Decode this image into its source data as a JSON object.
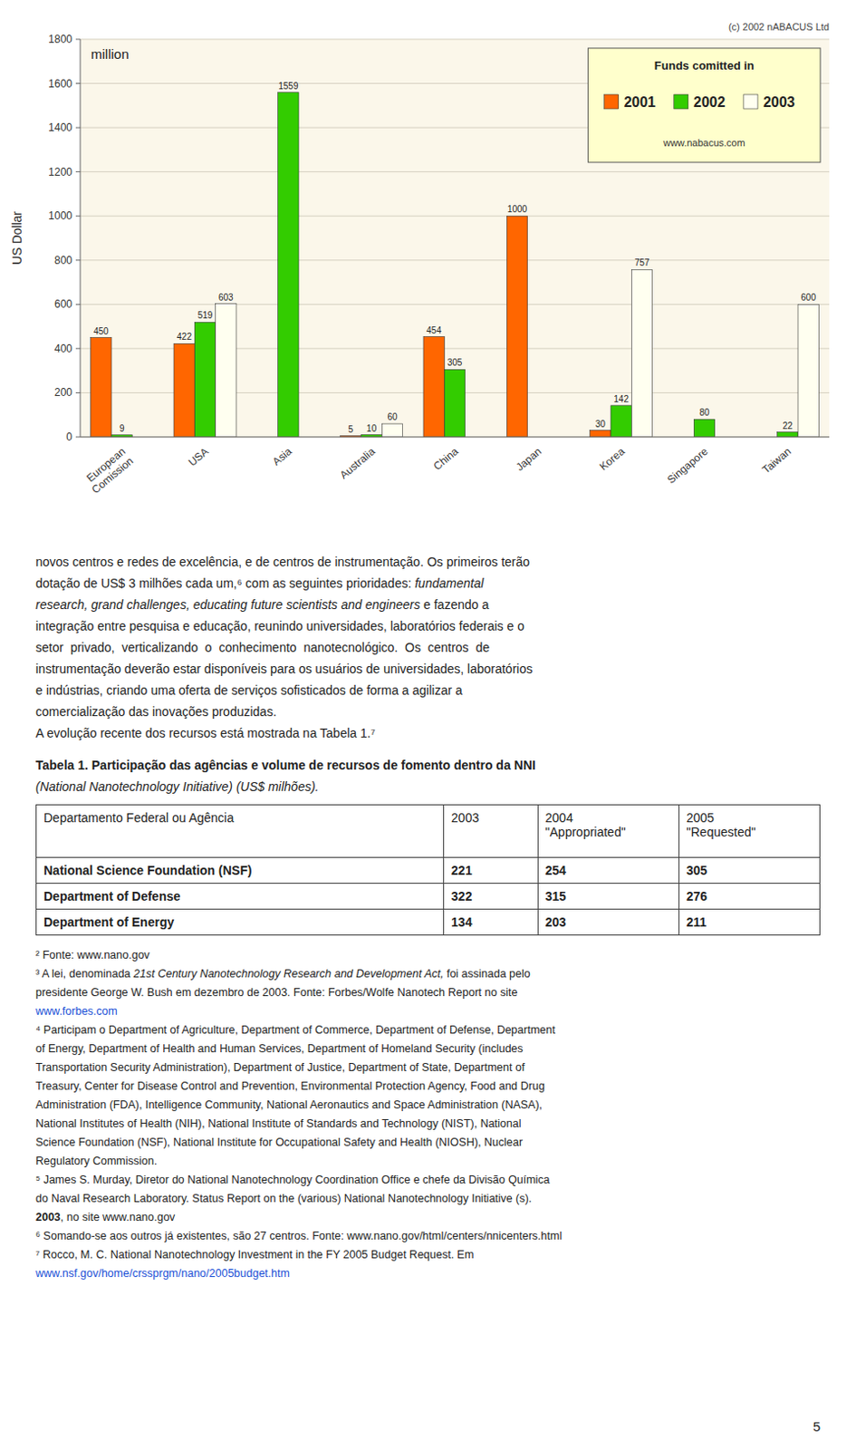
{
  "chart_data": {
    "type": "bar",
    "categories": [
      "European\nComission",
      "USA",
      "Asia",
      "Australia",
      "China",
      "Japan",
      "Korea",
      "Singapore",
      "Taiwan"
    ],
    "series": [
      {
        "name": "2001",
        "color": "#FF6600",
        "values": [
          450,
          422,
          0,
          5,
          454,
          1000,
          30,
          0,
          0
        ],
        "value_labels": [
          "450",
          "422",
          null,
          "5",
          "454",
          "1000",
          "30",
          null,
          null
        ]
      },
      {
        "name": "2002",
        "color": "#33CC00",
        "values": [
          9,
          519,
          1559,
          10,
          305,
          0,
          142,
          80,
          22
        ],
        "value_labels": [
          "9",
          "519",
          "1559",
          "10",
          "305",
          null,
          "142",
          "80",
          "22"
        ]
      },
      {
        "name": "2003",
        "color": "#FFFFF0",
        "values": [
          0,
          603,
          0,
          60,
          0,
          0,
          757,
          0,
          600
        ],
        "value_labels": [
          null,
          "603",
          null,
          "60",
          null,
          null,
          "757",
          null,
          "600"
        ]
      }
    ],
    "ylabel": "US Dollar",
    "ylim": [
      0,
      1800
    ],
    "yticks": [
      0,
      200,
      400,
      600,
      800,
      1000,
      1200,
      1400,
      1600,
      1800
    ],
    "grid": true,
    "legend": "upper right",
    "data_labels": true,
    "annotations": [
      "million",
      "(c) 2002 nABACUS Ltd",
      "Funds comitted in",
      "www.nabacus.com"
    ]
  },
  "body_lines": [
    [
      {
        "text": "novos centros e redes de excelência, e de centros de instrumentação. Os primeiros terão",
        "style": "normal"
      }
    ],
    [
      {
        "text": "dotação de US$ 3 milhões cada um,⁶ com as seguintes prioridades: ",
        "style": "normal"
      },
      {
        "text": "fundamental",
        "style": "italic"
      }
    ],
    [
      {
        "text": "research, grand challenges, educating future scientists and engineers",
        "style": "italic"
      },
      {
        "text": " e fazendo a",
        "style": "normal"
      }
    ],
    [
      {
        "text": "integração entre pesquisa e educação, reunindo universidades, laboratórios federais e o",
        "style": "normal"
      }
    ],
    [
      {
        "text": "setor  privado,  verticalizando  o  conhecimento  nanotecnológico.  Os  centros  de",
        "style": "normal"
      }
    ],
    [
      {
        "text": "instrumentação deverão estar disponíveis para os usuários de universidades, laboratórios",
        "style": "normal"
      }
    ],
    [
      {
        "text": "e indústrias, criando uma oferta de serviços sofisticados de forma a agilizar a",
        "style": "normal"
      }
    ],
    [
      {
        "text": "comercialização das inovações produzidas.",
        "style": "normal"
      }
    ],
    [
      {
        "text": "A evolução recente dos recursos está mostrada na Tabela 1.⁷",
        "style": "normal"
      }
    ]
  ],
  "table_title": [
    [
      {
        "text": "Tabela 1. Participação das agências e volume de recursos de fomento dentro da NNI",
        "style": "bold"
      }
    ],
    [
      {
        "text": "(National Nanotechnology Initiative) (US$ milhões).",
        "style": "italic"
      }
    ]
  ],
  "table": {
    "header": [
      "Departamento Federal ou Agência",
      "2003",
      "2004\n\"Appropriated\"",
      "2005\n\"Requested\""
    ],
    "rows": [
      [
        "National Science Foundation (NSF)",
        "221",
        "254",
        "305"
      ],
      [
        "Department of Defense",
        "322",
        "315",
        "276"
      ],
      [
        "Department of Energy",
        "134",
        "203",
        "211"
      ]
    ]
  },
  "footnotes": [
    [
      {
        "text": "² Fonte: www.nano.gov",
        "style": "normal"
      }
    ],
    [
      {
        "text": "³ A lei, denominada ",
        "style": "normal"
      },
      {
        "text": "21st Century Nanotechnology Research and Development Act,",
        "style": "italic"
      },
      {
        "text": " foi assinada pelo",
        "style": "normal"
      }
    ],
    [
      {
        "text": "presidente George W. Bush em dezembro de 2003. Fonte: Forbes/Wolfe Nanotech Report no site",
        "style": "normal"
      }
    ],
    [
      {
        "text": "www.forbes.com",
        "style": "link"
      }
    ],
    [
      {
        "text": "⁴ Participam o Department of Agriculture, Department of Commerce, Department of Defense, Department",
        "style": "normal"
      }
    ],
    [
      {
        "text": "of Energy, Department of Health and Human Services, Department of Homeland Security (includes",
        "style": "normal"
      }
    ],
    [
      {
        "text": "Transportation Security Administration), Department of Justice, Department of State, Department of",
        "style": "normal"
      }
    ],
    [
      {
        "text": "Treasury, Center for Disease Control and Prevention, Environmental Protection Agency, Food and Drug",
        "style": "normal"
      }
    ],
    [
      {
        "text": "Administration (FDA), Intelligence Community, National Aeronautics and Space Administration (NASA),",
        "style": "normal"
      }
    ],
    [
      {
        "text": "National Institutes of Health (NIH), National Institute of Standards and Technology (NIST), National",
        "style": "normal"
      }
    ],
    [
      {
        "text": "Science Foundation (NSF), National Institute for Occupational Safety and Health (NIOSH), Nuclear",
        "style": "normal"
      }
    ],
    [
      {
        "text": "Regulatory Commission.",
        "style": "normal"
      }
    ],
    [
      {
        "text": "⁵ James S. Murday, Diretor do National Nanotechnology Coordination Office e chefe da Divisão Química",
        "style": "normal"
      }
    ],
    [
      {
        "text": "do Naval Research Laboratory. Status Report on the (various) National Nanotechnology Initiative (s).",
        "style": "normal"
      }
    ],
    [
      {
        "text": "2003",
        "style": "bold"
      },
      {
        "text": ", no site www.nano.gov",
        "style": "normal"
      }
    ],
    [
      {
        "text": "⁶ Somando-se aos outros já existentes, são 27 centros. Fonte: www.nano.gov/html/centers/nnicenters.html",
        "style": "normal"
      }
    ],
    [
      {
        "text": "⁷ Rocco, M. C. National Nanotechnology Investment in the FY 2005 Budget Request. Em",
        "style": "normal"
      }
    ],
    [
      {
        "text": "www.nsf.gov/home/crssprgm/nano/2005budget.htm",
        "style": "link"
      }
    ]
  ],
  "page_number": "5"
}
